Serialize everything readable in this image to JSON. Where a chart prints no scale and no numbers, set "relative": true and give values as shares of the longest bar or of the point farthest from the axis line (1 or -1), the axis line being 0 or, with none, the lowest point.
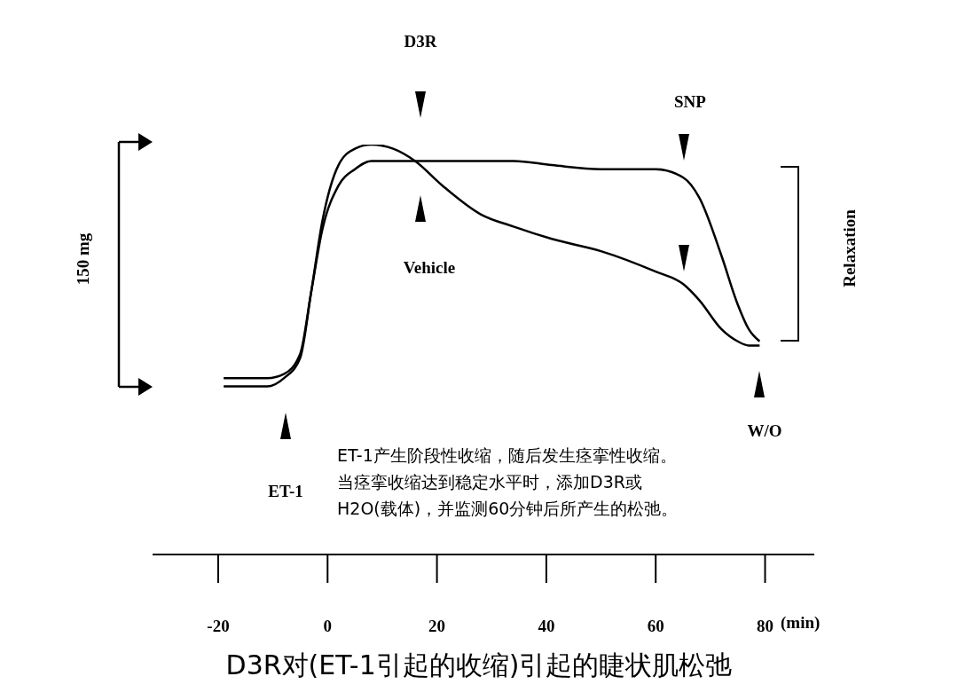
{
  "chart_data": {
    "type": "line",
    "title": "D3R对(ET-1引起的收缩)引起的睫状肌松弛",
    "xlabel": "(min)",
    "relative": true,
    "x": [
      -19,
      -11,
      -8,
      -5,
      -3,
      -1,
      2,
      5,
      8,
      12,
      16,
      21,
      28,
      34,
      41,
      50,
      60,
      65,
      68,
      72,
      75,
      77,
      79
    ],
    "xlim": [
      -32,
      89
    ],
    "xticks": [
      -20,
      0,
      20,
      40,
      60,
      80
    ],
    "series": [
      {
        "color": "#000000",
        "values": [
          0.43,
          0.43,
          0.44,
          0.49,
          0.64,
          0.79,
          0.9,
          0.94,
          0.96,
          0.96,
          0.96,
          0.96,
          0.96,
          0.96,
          0.95,
          0.94,
          0.94,
          0.92,
          0.87,
          0.73,
          0.61,
          0.55,
          0.52
        ]
      },
      {
        "color": "#000000",
        "values": [
          0.41,
          0.41,
          0.43,
          0.48,
          0.64,
          0.81,
          0.95,
          0.99,
          1,
          0.99,
          0.96,
          0.9,
          0.83,
          0.8,
          0.77,
          0.74,
          0.69,
          0.66,
          0.62,
          0.55,
          0.52,
          0.51,
          0.51
        ]
      }
    ],
    "annotations": [
      "ET-1",
      "D3R",
      "Vehicle",
      "SNP",
      "W/O",
      "150 mg",
      "Relaxation",
      "ET-1产生阶段性收缩，随后发生痉挛性收缩。",
      "当痉挛收缩达到稳定水平时，添加D3R或",
      "H2O(载体)，并监测60分钟后所产生的松弛。"
    ],
    "marker": "none",
    "line_style": "solid",
    "legend": false,
    "grid": false
  }
}
